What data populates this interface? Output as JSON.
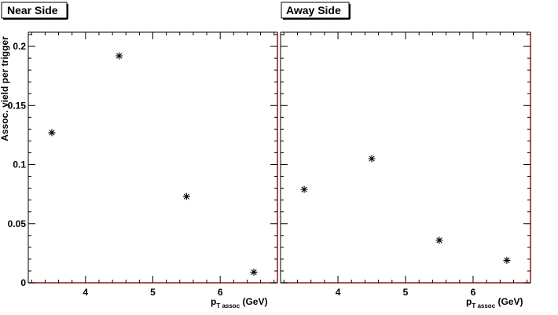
{
  "chart_data": [
    {
      "type": "scatter",
      "title": "Near Side",
      "xlabel": {
        "main": "p",
        "sub": "T assoc",
        "unit": " (GeV)"
      },
      "ylabel": "Assoc. yield per trigger",
      "xlim": [
        3.15,
        6.85
      ],
      "ylim": [
        0,
        0.212
      ],
      "xticks": [
        4,
        5,
        6
      ],
      "xtick_labels": [
        "4",
        "5",
        "6"
      ],
      "yticks": [
        0,
        0.05,
        0.1,
        0.15,
        0.2
      ],
      "ytick_labels": [
        "0",
        "0.05",
        "0.1",
        "0.15",
        "0.2"
      ],
      "marker": "asterisk",
      "series": [
        {
          "x": [
            3.5,
            4.5,
            5.5,
            6.5
          ],
          "y": [
            0.127,
            0.192,
            0.073,
            0.009
          ]
        }
      ]
    },
    {
      "type": "scatter",
      "title": "Away Side",
      "xlabel": {
        "main": "p",
        "sub": "T assoc",
        "unit": " (GeV)"
      },
      "ylabel": "",
      "xlim": [
        3.15,
        6.85
      ],
      "ylim": [
        0,
        0.212
      ],
      "xticks": [
        4,
        5,
        6
      ],
      "xtick_labels": [
        "4",
        "5",
        "6"
      ],
      "yticks": [
        0,
        0.05,
        0.1,
        0.15,
        0.2
      ],
      "ytick_labels": [],
      "marker": "asterisk",
      "series": [
        {
          "x": [
            3.5,
            4.5,
            5.5,
            6.5
          ],
          "y": [
            0.079,
            0.105,
            0.036,
            0.019
          ]
        }
      ]
    }
  ],
  "colors": {
    "frame_right": "#8b1a1a",
    "frame": "#000000",
    "background": "#ffffff"
  }
}
